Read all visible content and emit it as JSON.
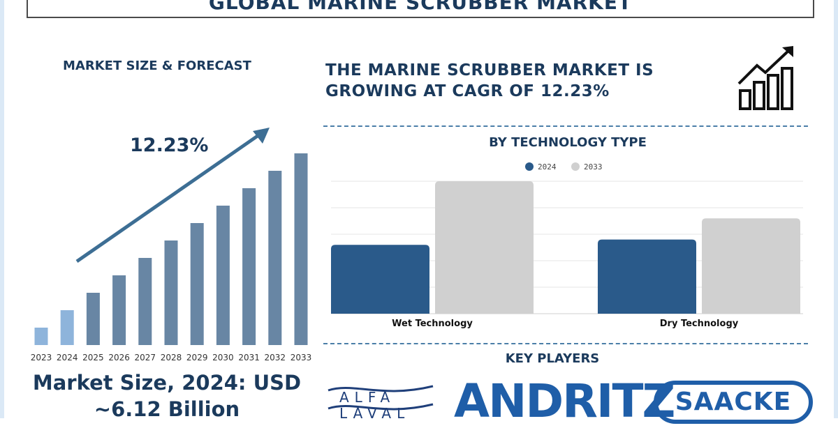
{
  "title": "GLOBAL MARINE SCRUBBER  MARKET",
  "market_size": {
    "heading": "MARKET SIZE & FORECAST",
    "line1": "Market Size, 2024: USD",
    "line2": "~6.12 Billion"
  },
  "headline": {
    "line1": "THE MARINE SCRUBBER MARKET IS",
    "line2": "GROWING AT CAGR OF 12.23%"
  },
  "technology": {
    "heading": "BY TECHNOLOGY TYPE"
  },
  "key_players": {
    "heading": "KEY PLAYERS",
    "logos": [
      "ALFA LAVAL",
      "ANDRITZ",
      "SAACKE"
    ]
  },
  "icons": [
    "bar-chart-growth-icon",
    "trend-arrow-icon"
  ],
  "colors": {
    "navy": "#1b3a5c",
    "bar_light": "#8eb4db",
    "bar_main": "#6886a4",
    "series_2024": "#2a5a8a",
    "series_2033": "#d0d0d0",
    "logo_blue": "#1f5ea8"
  },
  "chart_data": [
    {
      "type": "bar",
      "annotation": "12.23%",
      "categories": [
        "2023",
        "2024",
        "2025",
        "2026",
        "2027",
        "2028",
        "2029",
        "2030",
        "2031",
        "2032",
        "2033"
      ],
      "values": [
        1,
        2,
        3,
        4,
        5,
        6,
        7,
        8,
        9,
        10,
        11
      ],
      "highlighted": [
        "2023",
        "2024"
      ],
      "title": "",
      "xlabel": "",
      "ylabel": "",
      "grid": false
    },
    {
      "type": "bar",
      "title": "BY TECHNOLOGY TYPE",
      "categories": [
        "Wet Technology",
        "Dry Technology"
      ],
      "series": [
        {
          "name": "2024",
          "values": [
            2.6,
            2.8
          ]
        },
        {
          "name": "2033",
          "values": [
            5.0,
            3.6
          ]
        }
      ],
      "ylim": [
        0,
        5
      ],
      "grid": true,
      "legend": "top-center",
      "xlabel": "",
      "ylabel": ""
    }
  ]
}
